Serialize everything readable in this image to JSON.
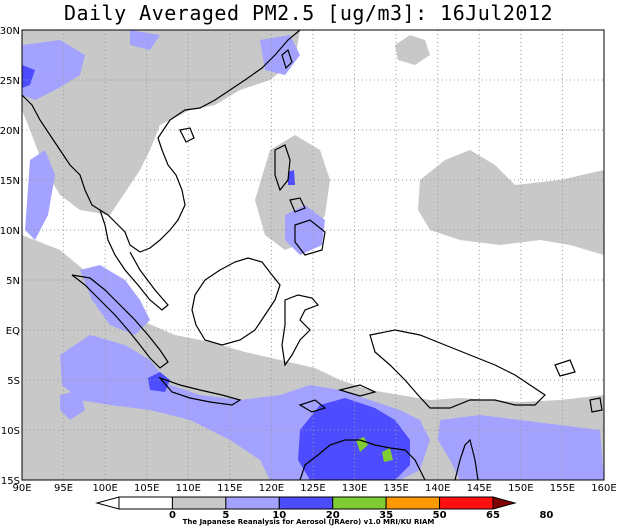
{
  "title": "Daily Averaged PM2.5 [ug/m3]: 16Jul2012",
  "credit": "The Japanese Reanalysis for Aerosol (JRAero) v1.0 MRI/KU RIAM",
  "map": {
    "lon_range": [
      90,
      160
    ],
    "lat_range": [
      -15,
      30
    ],
    "lon_ticks": [
      "90E",
      "95E",
      "100E",
      "105E",
      "110E",
      "115E",
      "120E",
      "125E",
      "130E",
      "135E",
      "140E",
      "145E",
      "150E",
      "155E",
      "160E"
    ],
    "lat_ticks": [
      "30N",
      "25N",
      "20N",
      "15N",
      "10N",
      "5N",
      "EQ",
      "5S",
      "10S",
      "15S"
    ],
    "grid": "dotted",
    "colors": {
      "land_outline": "#000000",
      "c5_10": "#c8c8c8",
      "c10_20": "#a3a3ff",
      "c20_35": "#6666ff",
      "c35_50": "#7fcc33",
      "c50_65": "#ff9900",
      "c65_80": "#ff0000",
      "over80": "#800000"
    }
  },
  "colorbar": {
    "levels": [
      "0",
      "5",
      "10",
      "20",
      "35",
      "50",
      "65",
      "80"
    ],
    "colors": [
      "#ffffff",
      "#ffffff",
      "#c8c8c8",
      "#a3a3ff",
      "#4d4dff",
      "#7fcc33",
      "#ff9900",
      "#ff1010",
      "#800000"
    ]
  }
}
